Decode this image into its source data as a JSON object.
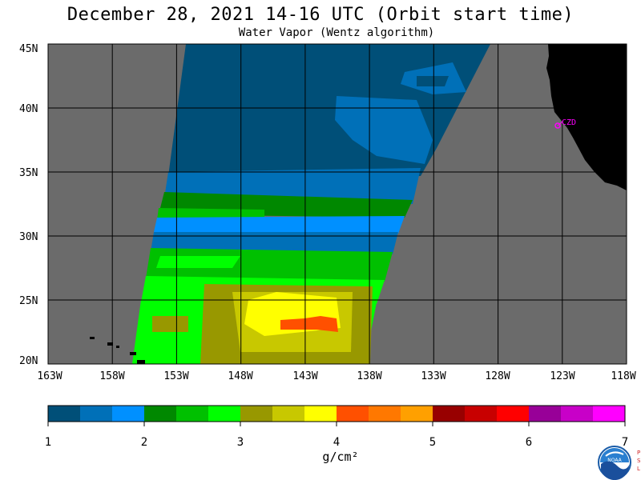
{
  "header": {
    "title": "December 28, 2021  14-16 UTC  (Orbit start time)",
    "subtitle": "Water Vapor (Wentz algorithm)"
  },
  "map": {
    "lon_ticks": [
      "163W",
      "158W",
      "153W",
      "148W",
      "143W",
      "138W",
      "133W",
      "128W",
      "123W",
      "118W"
    ],
    "lat_ticks": [
      "45N",
      "40N",
      "35N",
      "30N",
      "25N",
      "20N"
    ],
    "lon_range": [
      -163,
      -118
    ],
    "lat_range": [
      20,
      45
    ],
    "station_label": "CZD",
    "colors": {
      "no_data": "#6b6b6b",
      "land": "#000000",
      "grid": "#000000",
      "station": "#ff00ff"
    }
  },
  "colorbar": {
    "labels": [
      "1",
      "2",
      "3",
      "4",
      "5",
      "6",
      "7"
    ],
    "unit": "g/cm²",
    "colors": [
      "#004f78",
      "#0070b8",
      "#0090ff",
      "#008800",
      "#00c000",
      "#00ff00",
      "#989800",
      "#c8c800",
      "#ffff00",
      "#ff5000",
      "#ff7800",
      "#ffa000",
      "#980000",
      "#c80000",
      "#ff0000",
      "#980098",
      "#c800c8",
      "#ff00ff"
    ]
  },
  "logo": {
    "icon": "noaa-logo-icon",
    "letters": [
      "P",
      "S",
      "L"
    ]
  }
}
